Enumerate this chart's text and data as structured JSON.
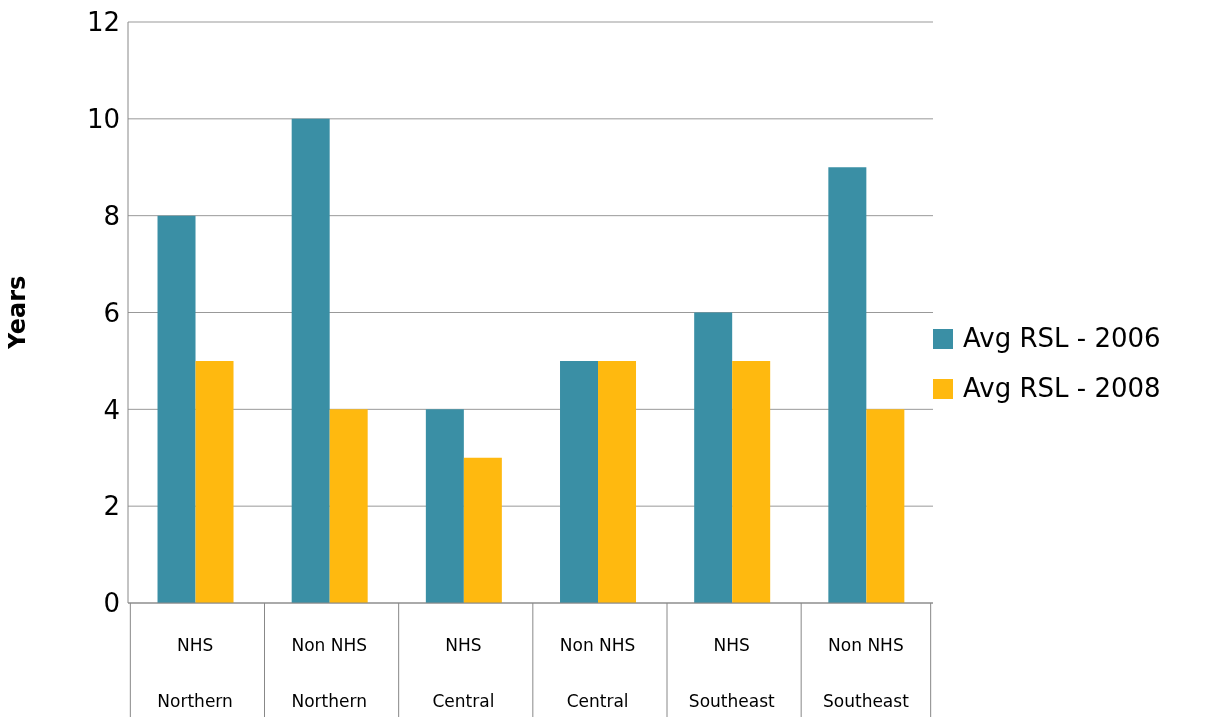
{
  "chart_data": {
    "type": "bar",
    "ylabel": "Years",
    "categories": [
      "NHS\nNorthern",
      "Non NHS\nNorthern",
      "NHS\nCentral",
      "Non NHS\nCentral",
      "NHS\nSoutheast",
      "Non NHS\nSoutheast"
    ],
    "series": [
      {
        "name": "Avg RSL - 2006",
        "color": "#3a8fa5",
        "values": [
          8,
          10,
          4,
          5,
          6,
          9
        ]
      },
      {
        "name": "Avg RSL - 2008",
        "color": "#ffb90f",
        "values": [
          5,
          4,
          3,
          5,
          5,
          4
        ]
      }
    ],
    "ylim": [
      0,
      12
    ],
    "yticks": [
      0,
      2,
      4,
      6,
      8,
      10,
      12
    ],
    "grid": "y",
    "legend": "right"
  }
}
